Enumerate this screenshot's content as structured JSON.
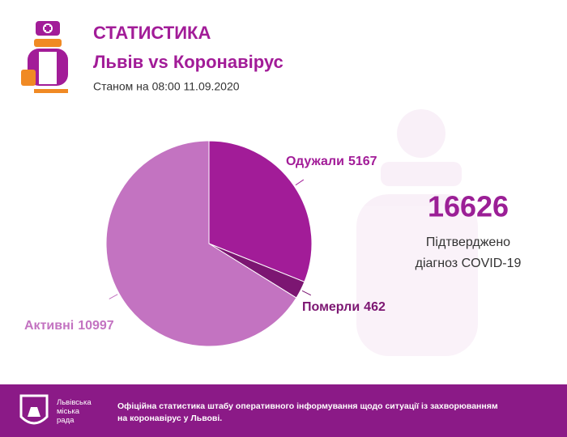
{
  "header": {
    "title": "СТАТИСТИКА",
    "subtitle": "Львів vs Коронавірус",
    "date": "Станом на 08:00 11.09.2020"
  },
  "chart_data": {
    "type": "pie",
    "categories": [
      "Одужали",
      "Померли",
      "Активні"
    ],
    "values": [
      5167,
      462,
      10997
    ],
    "colors": [
      "#a21c98",
      "#7c1672",
      "#c373c1"
    ],
    "total": 16626,
    "total_caption": [
      "Підтверджено",
      "діагноз COVID-19"
    ]
  },
  "footer": {
    "logo": [
      "Львівська",
      "міська",
      "рада"
    ],
    "text": "Офіційна статистика штабу оперативного інформування щодо ситуації із захворюванням на коронавірус у Львові."
  }
}
